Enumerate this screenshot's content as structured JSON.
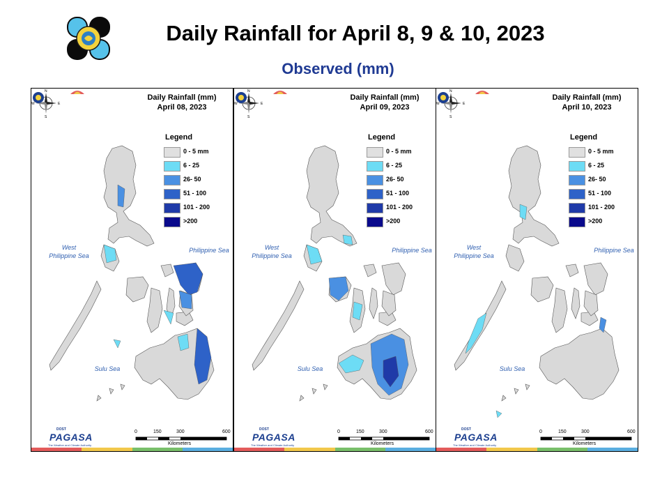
{
  "header": {
    "title": "Daily Rainfall for April 8, 9 & 10, 2023",
    "subtitle": "Observed (mm)"
  },
  "panels": [
    {
      "title_line1": "Daily Rainfall (mm)",
      "title_line2": "April 08, 2023"
    },
    {
      "title_line1": "Daily Rainfall (mm)",
      "title_line2": "April 09, 2023"
    },
    {
      "title_line1": "Daily Rainfall (mm)",
      "title_line2": "April 10, 2023"
    }
  ],
  "legend": {
    "title": "Legend",
    "items": [
      {
        "label": "0 - 5 mm",
        "color": "#e0e0e0"
      },
      {
        "label": "6 - 25",
        "color": "#6ddcf5"
      },
      {
        "label": "26- 50",
        "color": "#4a90e2"
      },
      {
        "label": "51 - 100",
        "color": "#2e62c8"
      },
      {
        "label": "101 - 200",
        "color": "#1f3aa8"
      },
      {
        "label": ">200",
        "color": "#0a0a8c"
      }
    ]
  },
  "seas": {
    "west": "West\nPhilippine Sea",
    "philippine": "Philippine Sea",
    "sulu": "Sulu Sea"
  },
  "compass_labels": {
    "n": "N",
    "s": "S",
    "e": "E",
    "w": "W"
  },
  "scalebar": {
    "ticks": [
      "0",
      "150",
      "300",
      "600"
    ],
    "unit": "Kilometers"
  },
  "branding": {
    "small": "DOST",
    "main": "PAGASA",
    "tagline": "The Weather and Climate Authority",
    "strip_colors": [
      "#e35b5b",
      "#f2c84b",
      "#79bf6a",
      "#5aaee0"
    ]
  }
}
